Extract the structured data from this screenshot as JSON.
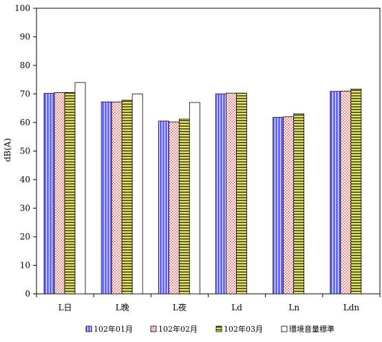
{
  "chart_data": {
    "type": "bar",
    "ylabel": "dB(A)",
    "xlabel": "",
    "title": "",
    "ylim": [
      0,
      100
    ],
    "yticks": [
      0,
      10,
      20,
      30,
      40,
      50,
      60,
      70,
      80,
      90,
      100
    ],
    "grid": false,
    "legend_position": "bottom",
    "categories": [
      "L日",
      "L晚",
      "L夜",
      "Ld",
      "Ln",
      "Ldn"
    ],
    "series": [
      {
        "name": "102年01月",
        "values": [
          70.2,
          67.2,
          60.5,
          70.0,
          61.8,
          70.9
        ],
        "color": "#6a6af0",
        "pattern": "vertical-stripes"
      },
      {
        "name": "102年02月",
        "values": [
          70.5,
          67.2,
          60.2,
          70.3,
          62.0,
          71.0
        ],
        "color": "#f06a6a",
        "pattern": "dots"
      },
      {
        "name": "102年03月",
        "values": [
          70.5,
          67.8,
          61.2,
          70.3,
          63.0,
          71.7
        ],
        "color": "#d8d860",
        "pattern": "horizontal-stripes"
      },
      {
        "name": "環境音量標準",
        "values": [
          74,
          70,
          67,
          null,
          null,
          null
        ],
        "color": "#ffffff",
        "pattern": "none"
      }
    ]
  }
}
